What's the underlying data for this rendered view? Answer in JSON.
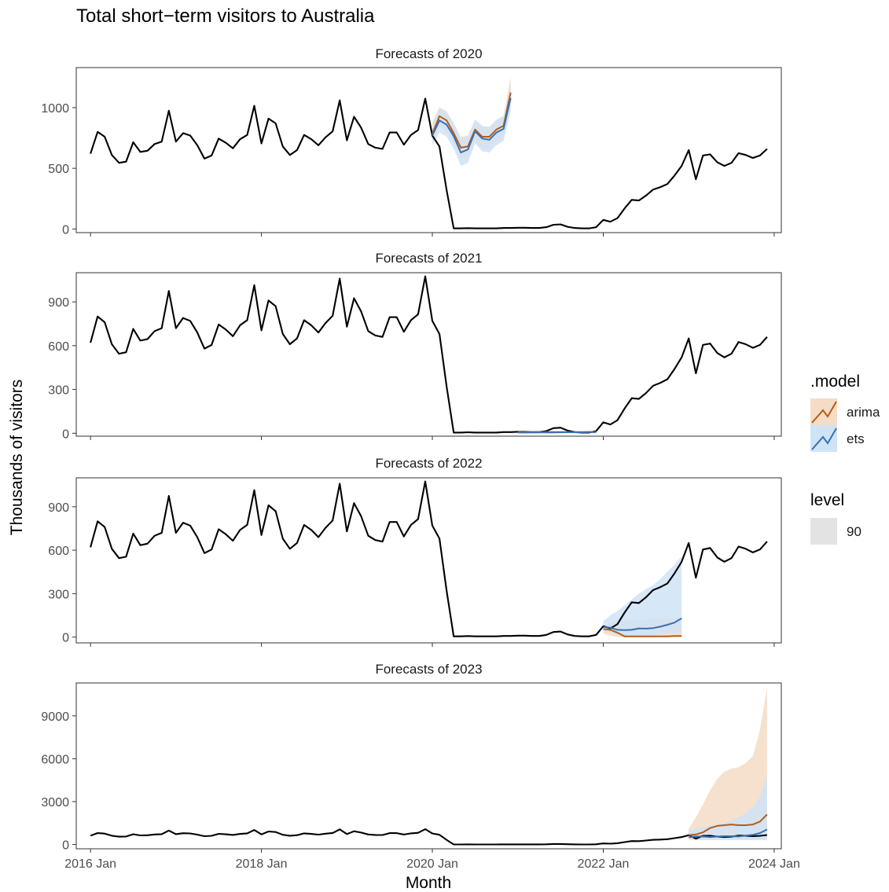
{
  "chart_data": {
    "type": "line",
    "title": "Total short−term visitors to Australia",
    "xlabel": "Month",
    "ylabel": "Thousands of visitors",
    "x_ticks": [
      "2016 Jan",
      "2018 Jan",
      "2020 Jan",
      "2022 Jan",
      "2024 Jan"
    ],
    "x_range": [
      "2016-01",
      "2024-01"
    ],
    "colors": {
      "observed": "#000000",
      "arima": "#b85c14",
      "ets": "#3a6fb0",
      "arima_band": "#f5dcc6",
      "ets_band": "#cfe3f7"
    },
    "legend": {
      "model_title": ".model",
      "models": [
        "arima",
        "ets"
      ],
      "level_title": "level",
      "levels": [
        "90"
      ]
    },
    "observed": {
      "start": "2016-01",
      "values": [
        620,
        800,
        760,
        610,
        545,
        555,
        715,
        635,
        645,
        700,
        720,
        975,
        720,
        790,
        770,
        690,
        580,
        605,
        745,
        710,
        665,
        740,
        775,
        1015,
        705,
        910,
        870,
        680,
        610,
        650,
        775,
        740,
        690,
        755,
        805,
        1060,
        730,
        925,
        835,
        700,
        670,
        660,
        795,
        795,
        695,
        775,
        815,
        1075,
        770,
        680,
        320,
        5,
        5,
        7,
        5,
        5,
        5,
        5,
        8,
        8,
        10,
        10,
        8,
        8,
        15,
        35,
        38,
        18,
        8,
        5,
        5,
        15,
        75,
        60,
        90,
        170,
        240,
        235,
        275,
        325,
        345,
        370,
        440,
        520,
        650,
        410,
        605,
        615,
        550,
        520,
        545,
        625,
        610,
        585,
        605,
        660
      ]
    },
    "facets": [
      {
        "title": "Forecasts of 2020",
        "y_ticks": [
          0,
          500,
          1000
        ],
        "y_range": [
          -30,
          1330
        ],
        "forecast_start": "2020-01",
        "arima": [
          785,
          930,
          895,
          790,
          670,
          680,
          820,
          760,
          760,
          820,
          850,
          1125
        ],
        "arima_lo": [
          720,
          845,
          800,
          690,
          580,
          590,
          720,
          660,
          660,
          720,
          750,
          1030
        ],
        "arima_hi": [
          880,
          1005,
          970,
          870,
          760,
          770,
          890,
          840,
          840,
          900,
          930,
          1255
        ],
        "ets": [
          770,
          895,
          860,
          765,
          630,
          655,
          805,
          745,
          735,
          795,
          825,
          1080
        ],
        "ets_lo": [
          690,
          795,
          760,
          660,
          520,
          545,
          705,
          640,
          630,
          690,
          725,
          970
        ],
        "ets_hi": [
          850,
          995,
          960,
          870,
          740,
          765,
          905,
          850,
          840,
          900,
          935,
          1190
        ]
      },
      {
        "title": "Forecasts of 2021",
        "y_ticks": [
          0,
          300,
          600,
          900
        ],
        "y_range": [
          -20,
          1100
        ],
        "forecast_start": "2021-01",
        "arima": [
          8,
          8,
          8,
          8,
          8,
          8,
          8,
          8,
          8,
          8,
          8,
          8
        ],
        "arima_lo": [
          0,
          0,
          0,
          0,
          0,
          0,
          0,
          0,
          0,
          0,
          0,
          0
        ],
        "arima_hi": [
          12,
          12,
          12,
          12,
          12,
          12,
          14,
          14,
          14,
          14,
          15,
          15
        ],
        "ets": [
          5,
          5,
          6,
          6,
          6,
          6,
          7,
          7,
          7,
          7,
          8,
          8
        ],
        "ets_lo": [
          0,
          0,
          0,
          0,
          0,
          0,
          0,
          0,
          0,
          0,
          0,
          0
        ],
        "ets_hi": [
          12,
          12,
          13,
          13,
          13,
          13,
          14,
          14,
          14,
          14,
          15,
          15
        ]
      },
      {
        "title": "Forecasts of 2022",
        "y_ticks": [
          0,
          300,
          600,
          900
        ],
        "y_range": [
          -40,
          1100
        ],
        "forecast_start": "2022-01",
        "arima": [
          55,
          50,
          30,
          5,
          5,
          5,
          5,
          5,
          5,
          5,
          8,
          8
        ],
        "arima_lo": [
          25,
          10,
          0,
          0,
          0,
          0,
          0,
          0,
          0,
          0,
          0,
          0
        ],
        "arima_hi": [
          80,
          95,
          110,
          120,
          120,
          120,
          120,
          130,
          130,
          130,
          130,
          135
        ],
        "ets": [
          70,
          65,
          50,
          48,
          50,
          60,
          58,
          62,
          72,
          85,
          100,
          130
        ],
        "ets_lo": [
          40,
          30,
          15,
          10,
          10,
          12,
          12,
          14,
          16,
          20,
          25,
          30
        ],
        "ets_hi": [
          110,
          150,
          180,
          220,
          260,
          300,
          330,
          360,
          400,
          450,
          500,
          560
        ]
      },
      {
        "title": "Forecasts of 2023",
        "y_ticks": [
          0,
          3000,
          6000,
          9000
        ],
        "y_range": [
          -300,
          11300
        ],
        "forecast_start": "2023-01",
        "arima": [
          650,
          700,
          850,
          1150,
          1300,
          1350,
          1400,
          1350,
          1350,
          1400,
          1600,
          2100
        ],
        "arima_lo": [
          400,
          400,
          400,
          400,
          400,
          400,
          400,
          400,
          400,
          400,
          400,
          400
        ],
        "arima_hi": [
          1100,
          1900,
          2800,
          3800,
          4600,
          5100,
          5300,
          5400,
          5700,
          6200,
          8000,
          11000
        ],
        "ets": [
          500,
          560,
          560,
          520,
          560,
          580,
          580,
          560,
          620,
          680,
          800,
          1050
        ],
        "ets_lo": [
          300,
          300,
          300,
          300,
          300,
          300,
          300,
          300,
          300,
          300,
          300,
          300
        ],
        "ets_hi": [
          1000,
          1100,
          1200,
          1300,
          1400,
          1500,
          1700,
          1900,
          2200,
          2600,
          3300,
          4800
        ]
      }
    ]
  }
}
